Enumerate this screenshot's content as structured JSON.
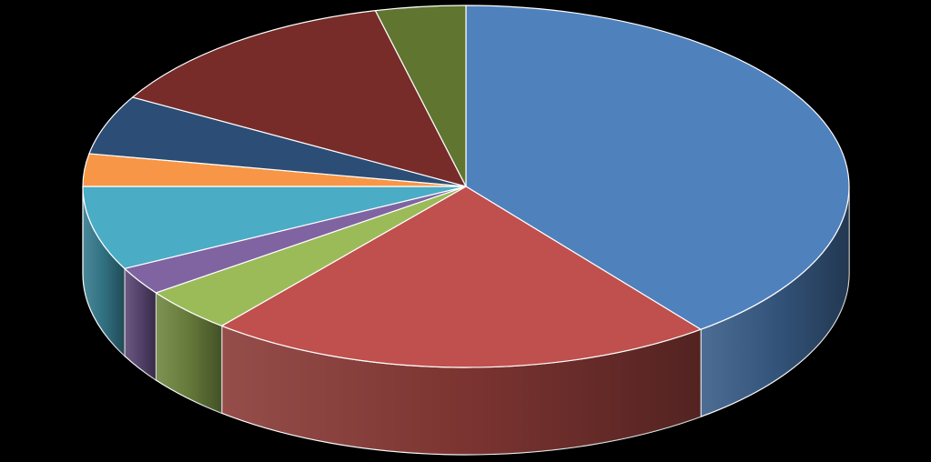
{
  "chart_data": {
    "type": "pie",
    "style": "3d",
    "title": "",
    "legend": "none",
    "start_angle_deg": 0,
    "direction": "clockwise",
    "values": [
      39.5,
      21.5,
      4.0,
      2.5,
      7.5,
      2.9,
      5.3,
      13.0,
      3.8
    ],
    "colors": [
      "#4F81BD",
      "#C0504D",
      "#9BBB59",
      "#8064A2",
      "#4BACC6",
      "#F79646",
      "#2C4D75",
      "#772C2A",
      "#5F7530"
    ],
    "background": "#000000"
  }
}
